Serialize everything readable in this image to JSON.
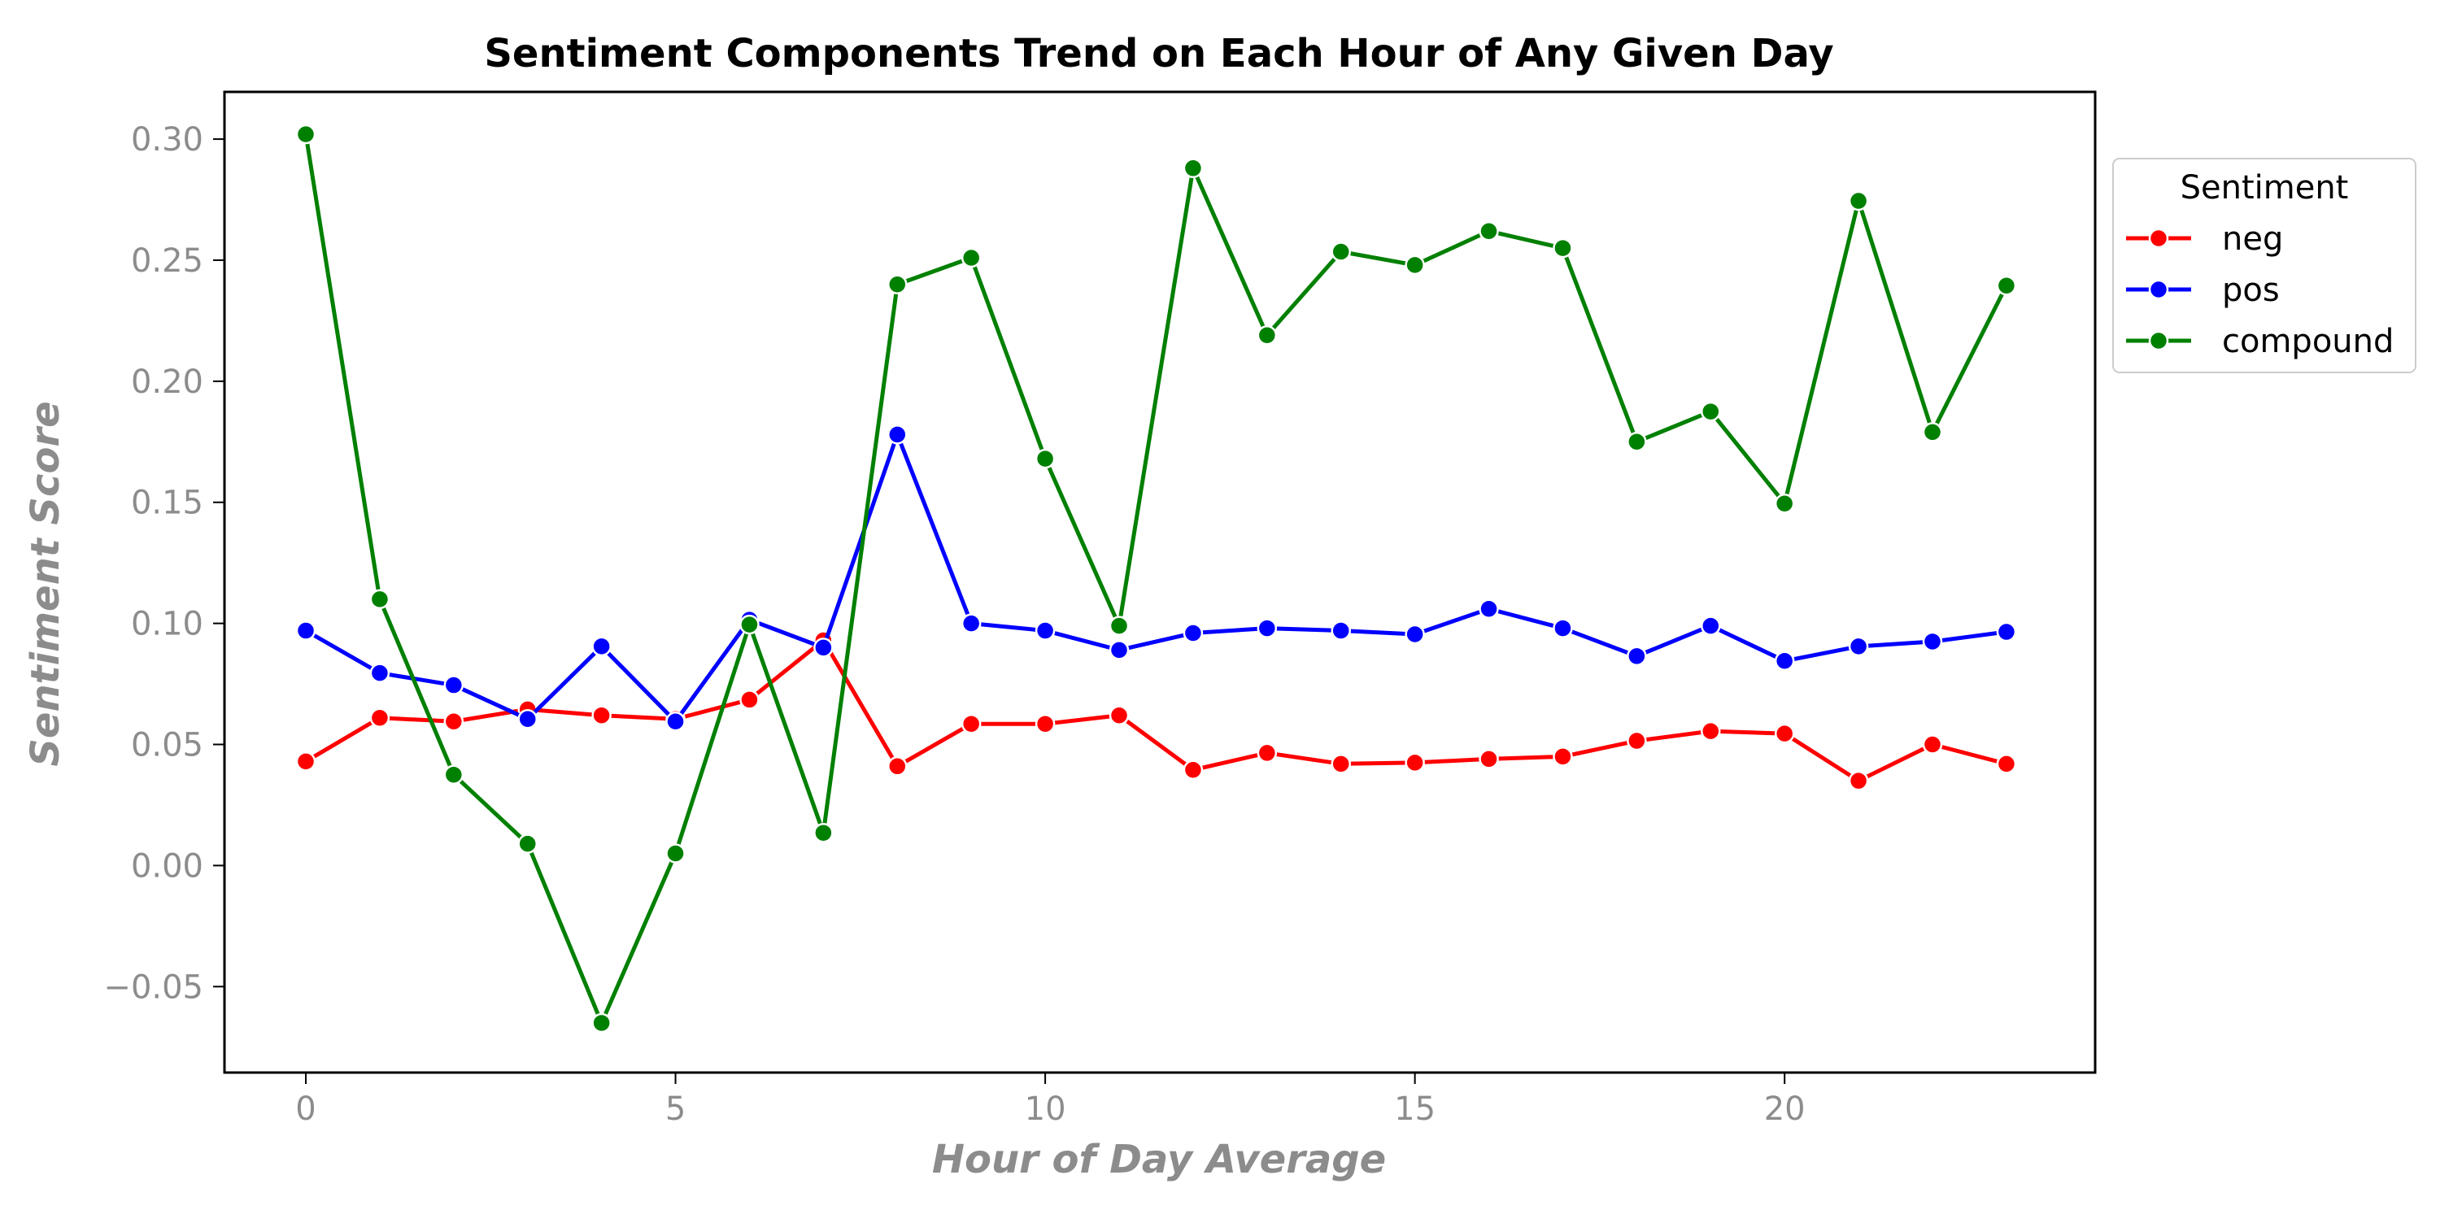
{
  "chart_data": {
    "type": "line",
    "title": "Sentiment Components Trend on Each Hour of Any Given Day",
    "xlabel": "Hour of Day Average",
    "ylabel": "Sentiment Score",
    "xlim": [
      -1.1,
      24.2
    ],
    "ylim": [
      -0.0855,
      0.3195
    ],
    "xticks": [
      0,
      5,
      10,
      15,
      20
    ],
    "xtick_labels": [
      "0",
      "5",
      "10",
      "15",
      "20"
    ],
    "yticks": [
      -0.05,
      0.0,
      0.05,
      0.1,
      0.15,
      0.2,
      0.25,
      0.3
    ],
    "ytick_labels": [
      "−0.05",
      "0.00",
      "0.05",
      "0.10",
      "0.15",
      "0.20",
      "0.25",
      "0.30"
    ],
    "grid": false,
    "legend": {
      "title": "Sentiment",
      "position": "upper right, outside plot"
    },
    "x": [
      0,
      1,
      2,
      3,
      4,
      5,
      6,
      7,
      8,
      9,
      10,
      11,
      12,
      13,
      14,
      15,
      16,
      17,
      18,
      19,
      20,
      21,
      22,
      23
    ],
    "series": [
      {
        "name": "neg",
        "color": "#ff0000",
        "values": [
          0.043,
          0.061,
          0.0595,
          0.0645,
          0.062,
          0.0605,
          0.0685,
          0.093,
          0.041,
          0.0585,
          0.0585,
          0.062,
          0.0395,
          0.0465,
          0.042,
          0.0425,
          0.044,
          0.045,
          0.0515,
          0.0555,
          0.0545,
          0.035,
          0.05,
          0.042
        ]
      },
      {
        "name": "pos",
        "color": "#0000ff",
        "values": [
          0.097,
          0.0795,
          0.0745,
          0.0605,
          0.0905,
          0.0595,
          0.1015,
          0.09,
          0.178,
          0.1,
          0.097,
          0.089,
          0.096,
          0.098,
          0.097,
          0.0955,
          0.106,
          0.098,
          0.0865,
          0.099,
          0.0845,
          0.0905,
          0.0925,
          0.0965
        ]
      },
      {
        "name": "compound",
        "color": "#008000",
        "values": [
          0.302,
          0.11,
          0.0375,
          0.009,
          -0.065,
          0.005,
          0.0995,
          0.0135,
          0.24,
          0.251,
          0.168,
          0.099,
          0.288,
          0.219,
          0.2535,
          0.248,
          0.262,
          0.255,
          0.175,
          0.1875,
          0.1495,
          0.2745,
          0.179,
          0.2395
        ]
      }
    ]
  }
}
